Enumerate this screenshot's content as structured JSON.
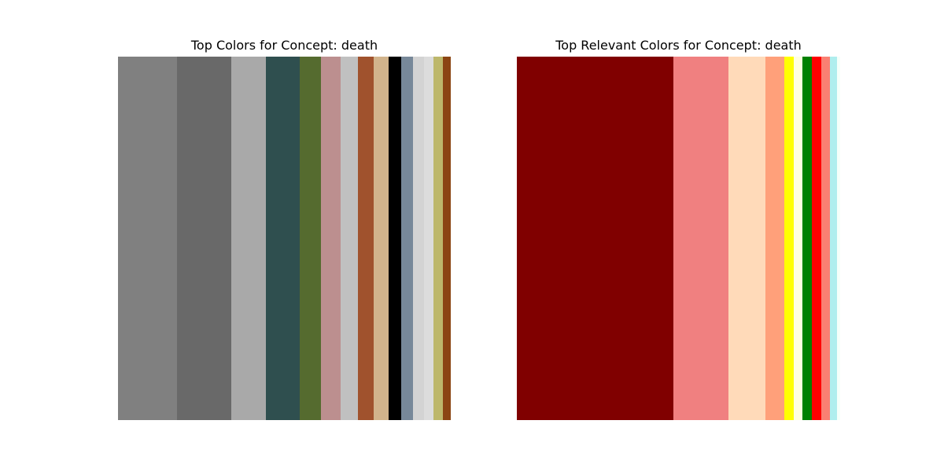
{
  "chart_data": [
    {
      "type": "bar",
      "title": "Top Colors for Concept: death",
      "xlabel": "",
      "ylabel": "",
      "grid": false,
      "segments": [
        {
          "color": "#808080",
          "share": 0.177
        },
        {
          "color": "#696969",
          "share": 0.163
        },
        {
          "color": "#a9a9a9",
          "share": 0.104
        },
        {
          "color": "#2f4f4f",
          "share": 0.102
        },
        {
          "color": "#556b2f",
          "share": 0.064
        },
        {
          "color": "#bc8f8f",
          "share": 0.059
        },
        {
          "color": "#c0c0c0",
          "share": 0.052
        },
        {
          "color": "#a0522d",
          "share": 0.047
        },
        {
          "color": "#d2b48c",
          "share": 0.045
        },
        {
          "color": "#000000",
          "share": 0.038
        },
        {
          "color": "#778899",
          "share": 0.035
        },
        {
          "color": "#d3d3d3",
          "share": 0.033
        },
        {
          "color": "#dcdcdc",
          "share": 0.028
        },
        {
          "color": "#bdb76b",
          "share": 0.028
        },
        {
          "color": "#8b4513",
          "share": 0.024
        }
      ]
    },
    {
      "type": "bar",
      "title": "Top Relevant Colors for Concept: death",
      "xlabel": "",
      "ylabel": "",
      "grid": false,
      "segments": [
        {
          "color": "#800000",
          "share": 0.485
        },
        {
          "color": "#f08080",
          "share": 0.17
        },
        {
          "color": "#ffdab9",
          "share": 0.114
        },
        {
          "color": "#ffa07a",
          "share": 0.058
        },
        {
          "color": "#ffff00",
          "share": 0.029
        },
        {
          "color": "#ffffe0",
          "share": 0.027
        },
        {
          "color": "#008000",
          "share": 0.029
        },
        {
          "color": "#ff0000",
          "share": 0.029
        },
        {
          "color": "#fa8072",
          "share": 0.027
        },
        {
          "color": "#afeeee",
          "share": 0.022
        },
        {
          "color": "#f5fffa",
          "share": 0.01
        }
      ]
    }
  ]
}
